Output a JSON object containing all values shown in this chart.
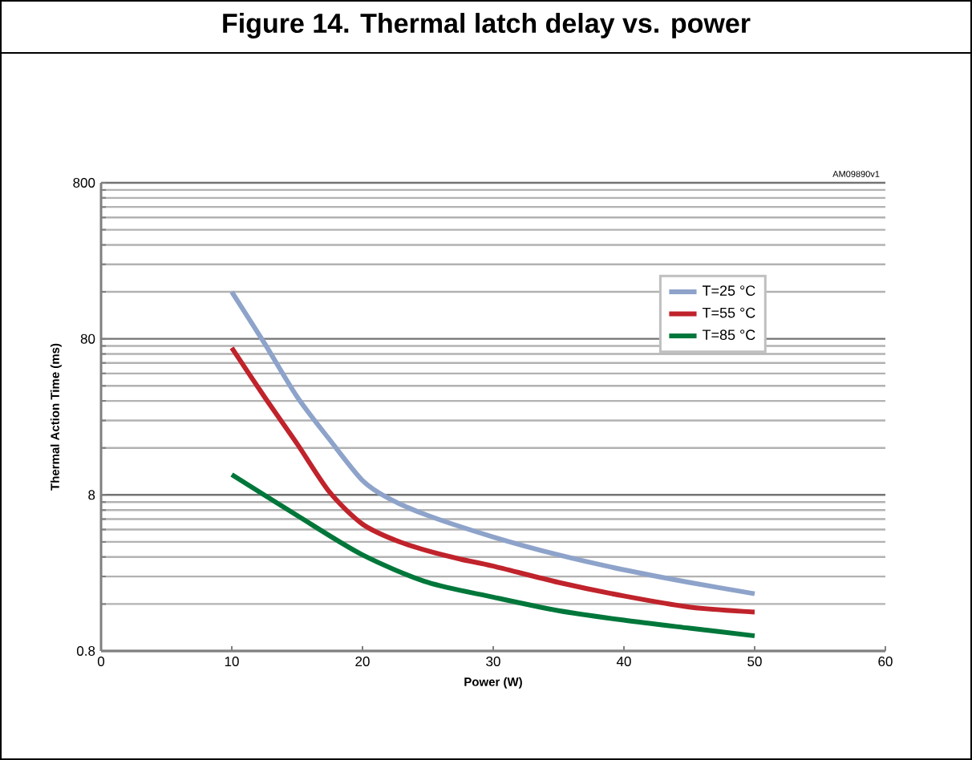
{
  "chart_data": {
    "type": "line",
    "title": "Figure 14. Thermal latch delay vs. power",
    "xlabel": "Power (W)",
    "ylabel": "Thermal Action Time (ms)",
    "annotations": [
      "AM09890v1"
    ],
    "log": "y",
    "grid": "y",
    "legend": "right",
    "marker": "none",
    "line_style": "solid",
    "xlim": [
      0,
      60
    ],
    "xticks": [
      0,
      10,
      20,
      30,
      40,
      50,
      60
    ],
    "ylim": [
      0.8,
      800
    ],
    "yticks": [
      0.8,
      8,
      80,
      800
    ],
    "series": [
      {
        "name": "T=25 °C",
        "color": "#8ea3ca",
        "x": [
          10,
          12.5,
          15,
          17.5,
          20,
          22,
          25,
          30,
          35,
          40,
          45,
          50
        ],
        "values": [
          160,
          75,
          34,
          18,
          9.9,
          7.6,
          5.9,
          4.3,
          3.3,
          2.65,
          2.2,
          1.86
        ]
      },
      {
        "name": "T=55 °C",
        "color": "#c0232b",
        "x": [
          10,
          12.5,
          15,
          17.5,
          20,
          22.5,
          25,
          27.5,
          30,
          35,
          40,
          45,
          50
        ],
        "values": [
          70,
          34,
          17,
          8.3,
          5.2,
          4.1,
          3.5,
          3.1,
          2.8,
          2.2,
          1.8,
          1.53,
          1.42
        ]
      },
      {
        "name": "T=85 °C",
        "color": "#00773a",
        "x": [
          10,
          15,
          20,
          25,
          30,
          35,
          40,
          45,
          50
        ],
        "values": [
          10.8,
          5.9,
          3.3,
          2.2,
          1.77,
          1.45,
          1.26,
          1.12,
          1.0
        ]
      }
    ]
  }
}
